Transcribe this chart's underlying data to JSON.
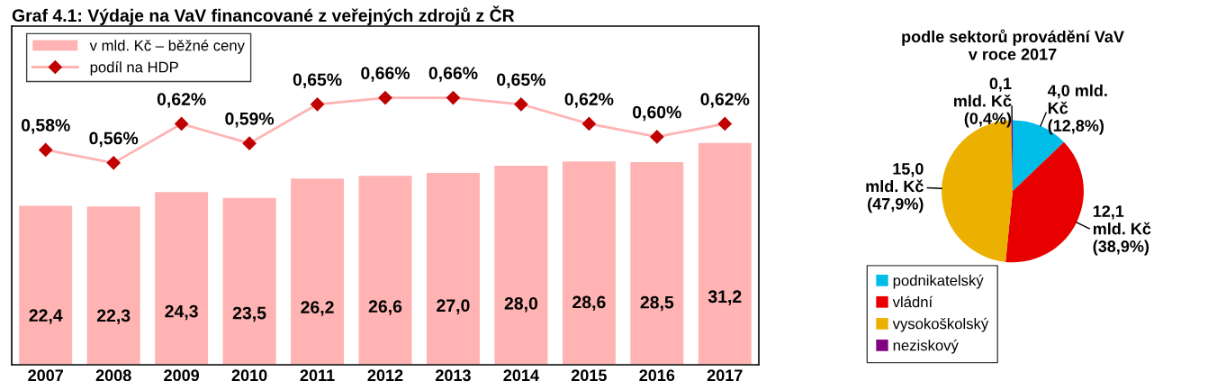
{
  "chart_data": [
    {
      "type": "bar",
      "title": "Graf 4.1: Výdaje na VaV financované z veřejných zdrojů z ČR",
      "categories": [
        "2007",
        "2008",
        "2009",
        "2010",
        "2011",
        "2012",
        "2013",
        "2014",
        "2015",
        "2016",
        "2017"
      ],
      "ylim": [
        0,
        47.5
      ],
      "y2lim": [
        0.25,
        0.77
      ],
      "tick_labels": "x",
      "legend": "top left",
      "grid": false,
      "series": [
        {
          "type": "bar",
          "name": "v mld. Kč – běžné ceny",
          "color": "#ffb3b3",
          "values": [
            22.4,
            22.3,
            24.3,
            23.5,
            26.2,
            26.6,
            27.0,
            28.0,
            28.6,
            28.5,
            31.2
          ],
          "value_labels": [
            "22,4",
            "22,3",
            "24,3",
            "23,5",
            "26,2",
            "26,6",
            "27,0",
            "28,0",
            "28,6",
            "28,5",
            "31,2"
          ]
        },
        {
          "type": "line",
          "name": "podíl na HDP",
          "axis": "y2",
          "color": "#ffb3b3",
          "marker": "diamond",
          "values": [
            0.58,
            0.56,
            0.62,
            0.59,
            0.65,
            0.66,
            0.66,
            0.65,
            0.62,
            0.6,
            0.62
          ],
          "value_labels": [
            "0,58%",
            "0,56%",
            "0,62%",
            "0,59%",
            "0,65%",
            "0,66%",
            "0,66%",
            "0,65%",
            "0,62%",
            "0,60%",
            "0,62%"
          ]
        }
      ]
    },
    {
      "type": "pie",
      "title": "podle sektorů provádění VaV\nv roce 2017",
      "legend": "bottom",
      "categories": [
        "podnikatelský",
        "vládní",
        "vysokoškolský",
        "neziskový"
      ],
      "values": [
        4.0,
        12.1,
        15.0,
        0.1
      ],
      "colors": [
        "#00bde8",
        "#e80000",
        "#ebb000",
        "#800080"
      ],
      "value_labels": [
        "4,0 mld.\nKč\n(12,8%)",
        "12,1\nmld. Kč\n(38,9%)",
        "15,0\nmld. Kč\n(47,9%)",
        "0,1\nmld. Kč\n(0,4%)"
      ]
    }
  ]
}
